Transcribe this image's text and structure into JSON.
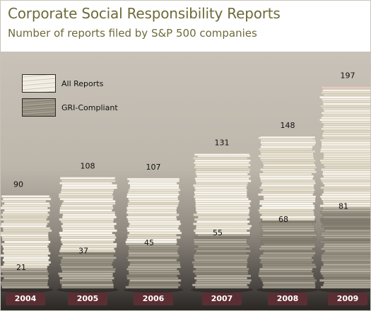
{
  "title": "Corporate Social Responsibility Reports",
  "subtitle": "Number of reports filed by S&P 500 companies",
  "legend": {
    "items": [
      {
        "label": "All Reports",
        "icon": "paper-stack-light-icon"
      },
      {
        "label": "GRI-Compliant",
        "icon": "paper-stack-dark-icon"
      }
    ],
    "placement": "top-left"
  },
  "colors": {
    "title": "#6e6a3a",
    "year_tab": "#5b2e33",
    "paper_light": "#f3efe4",
    "paper_dark": "#9a9485"
  },
  "chart_data": {
    "type": "bar",
    "style": "stacked paper piles",
    "categories": [
      "2004",
      "2005",
      "2006",
      "2007",
      "2008",
      "2009"
    ],
    "series": [
      {
        "name": "All Reports",
        "values": [
          90,
          108,
          107,
          131,
          148,
          197
        ]
      },
      {
        "name": "GRI-Compliant",
        "values": [
          21,
          37,
          45,
          55,
          68,
          81
        ]
      }
    ],
    "title": "Corporate Social Responsibility Reports",
    "subtitle": "Number of reports filed by S&P 500 companies",
    "ylim": [
      0,
      200
    ],
    "grid": false,
    "legend_placement": "top-left"
  }
}
